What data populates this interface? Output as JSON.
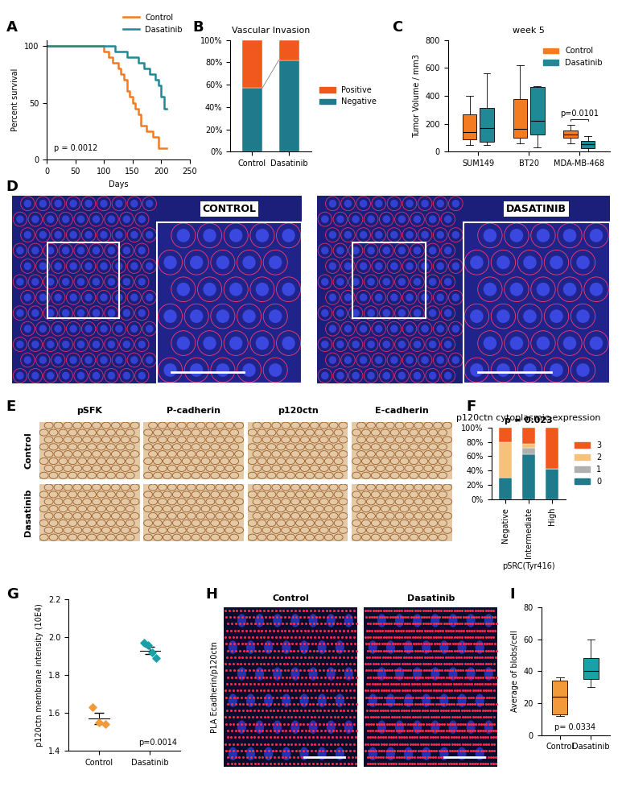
{
  "chart_data": [
    {
      "panel": "A",
      "type": "line",
      "line_style": "steps",
      "xlabel": "Days",
      "ylabel": "Percent survival",
      "xlim": [
        0,
        250
      ],
      "xticks": [
        0,
        50,
        100,
        150,
        200,
        250
      ],
      "ylim": [
        0,
        105
      ],
      "yticks": [
        0,
        50,
        100
      ],
      "legend": "upper right",
      "annotations": [
        "p = 0.0012"
      ],
      "series": [
        {
          "name": "Control",
          "color": "#f47b20",
          "x": [
            0,
            100,
            108,
            115,
            125,
            130,
            135,
            140,
            145,
            150,
            155,
            160,
            165,
            175,
            185,
            195,
            210
          ],
          "values": [
            100,
            95,
            90,
            85,
            80,
            75,
            70,
            60,
            55,
            50,
            45,
            40,
            30,
            25,
            20,
            10,
            10
          ]
        },
        {
          "name": "Dasatinib",
          "color": "#1f8a95",
          "x": [
            0,
            120,
            140,
            160,
            170,
            180,
            190,
            195,
            200,
            205,
            210
          ],
          "values": [
            100,
            95,
            90,
            85,
            80,
            75,
            70,
            65,
            55,
            45,
            45
          ]
        }
      ]
    },
    {
      "panel": "B",
      "type": "bar",
      "stacked": true,
      "title": "Vascular Invasion",
      "legend": "right",
      "categories": [
        "Control",
        "Dasatinib"
      ],
      "ylim": [
        0,
        100
      ],
      "yticks": [
        {
          "value": 0,
          "label": "0%"
        },
        {
          "value": 20,
          "label": "20%"
        },
        {
          "value": 40,
          "label": "40%"
        },
        {
          "value": 60,
          "label": "60%"
        },
        {
          "value": 80,
          "label": "80%"
        },
        {
          "value": 100,
          "label": "100%"
        }
      ],
      "series": [
        {
          "name": "Negative",
          "color": "#1f7a8c",
          "values": [
            57,
            82
          ]
        },
        {
          "name": "Positive",
          "color": "#f0581e",
          "values": [
            43,
            18
          ]
        }
      ]
    },
    {
      "panel": "C",
      "type": "box",
      "title": "week 5",
      "ylabel": "Tumor Volume / mm3",
      "categories": [
        "SUM149",
        "BT20",
        "MDA-MB-468"
      ],
      "ylim": [
        0,
        800
      ],
      "yticks": [
        0,
        200,
        400,
        600,
        800
      ],
      "legend": "upper right",
      "annotations": [
        {
          "text": "p=0.0101",
          "category": "MDA-MB-468"
        }
      ],
      "series": [
        {
          "name": "Control",
          "color": "#f47b20",
          "stats": [
            {
              "min": 50,
              "q1": 90,
              "median": 140,
              "q3": 270,
              "max": 400
            },
            {
              "min": 60,
              "q1": 100,
              "median": 165,
              "q3": 375,
              "max": 620
            },
            {
              "min": 60,
              "q1": 100,
              "median": 125,
              "q3": 150,
              "max": 195
            }
          ]
        },
        {
          "name": "Dasatinib",
          "color": "#1f8a95",
          "stats": [
            {
              "min": 50,
              "q1": 70,
              "median": 170,
              "q3": 315,
              "max": 560
            },
            {
              "min": 30,
              "q1": 125,
              "median": 220,
              "q3": 465,
              "max": 470
            },
            {
              "min": 5,
              "q1": 25,
              "median": 55,
              "q3": 80,
              "max": 110
            }
          ]
        }
      ]
    },
    {
      "panel": "D",
      "type": "image",
      "labels": [
        "CONTROL",
        "DASATINIB"
      ]
    },
    {
      "panel": "E",
      "type": "image",
      "columns": [
        "pSFK",
        "P-cadherin",
        "p120ctn",
        "E-cadherin"
      ],
      "rows": [
        "Control",
        "Dasatinib"
      ]
    },
    {
      "panel": "F",
      "type": "bar",
      "stacked": true,
      "title": "p120ctn cytoplasmic expression",
      "annotations": [
        "p = 0.023"
      ],
      "xlabel": "pSRC(Tyr416)",
      "legend": "right",
      "categories": [
        "Negative",
        "Intermediate",
        "High"
      ],
      "ylim": [
        0,
        100
      ],
      "yticks": [
        {
          "value": 0,
          "label": "0%"
        },
        {
          "value": 20,
          "label": "20%"
        },
        {
          "value": 40,
          "label": "40%"
        },
        {
          "value": 60,
          "label": "60%"
        },
        {
          "value": 80,
          "label": "80%"
        },
        {
          "value": 100,
          "label": "100%"
        }
      ],
      "series": [
        {
          "name": "0",
          "color": "#1f7a8c",
          "values": [
            30,
            63,
            43
          ]
        },
        {
          "name": "1",
          "color": "#b0b0b0",
          "values": [
            0,
            9,
            0
          ]
        },
        {
          "name": "2",
          "color": "#f6c17a",
          "values": [
            50,
            5,
            0
          ]
        },
        {
          "name": "3",
          "color": "#f0581e",
          "values": [
            20,
            23,
            57
          ]
        }
      ]
    },
    {
      "panel": "G",
      "type": "dot",
      "ylabel": "p120ctn membrane intensity (10E4)",
      "categories": [
        "Control",
        "Dasatinib"
      ],
      "colors": [
        "#f29a3a",
        "#1aa0a8"
      ],
      "values": [
        [
          1.63,
          1.55,
          1.54
        ],
        [
          1.97,
          1.96,
          1.92,
          1.89
        ]
      ],
      "mean": [
        1.57,
        1.93
      ],
      "sem": [
        0.03,
        0.02
      ],
      "ylim": [
        1.4,
        2.2
      ],
      "yticks": [
        1.4,
        1.6,
        1.8,
        {
          "value": 2.0,
          "label": "2.0"
        },
        2.2
      ],
      "annotations": [
        "p=0.0014"
      ]
    },
    {
      "panel": "H",
      "type": "image",
      "ylabel": "PLA Ecadherin/p120ctn",
      "labels": [
        "Control",
        "Dasatinib"
      ]
    },
    {
      "panel": "I",
      "type": "box",
      "ylabel": "Average of blobs/cell",
      "categories": [
        "Control",
        "Dasatinib"
      ],
      "colors": [
        "#f29a3a",
        "#1aa0a8"
      ],
      "stats": [
        {
          "min": 12,
          "q1": 13,
          "median": 24,
          "q3": 34,
          "max": 36
        },
        {
          "min": 30,
          "q1": 35,
          "median": 40,
          "q3": 48,
          "max": 60
        }
      ],
      "ylim": [
        0,
        80
      ],
      "yticks": [
        0,
        20,
        40,
        60,
        80
      ],
      "annotations": [
        "p= 0.0334"
      ]
    }
  ]
}
